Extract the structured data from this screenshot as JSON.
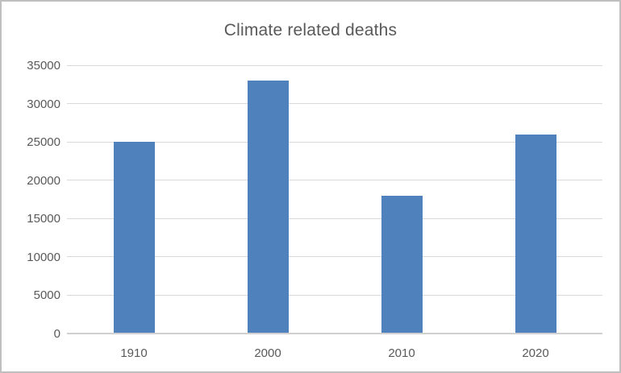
{
  "chart_data": {
    "type": "bar",
    "title": "Climate related deaths",
    "categories": [
      "1910",
      "2000",
      "2010",
      "2020"
    ],
    "values": [
      25000,
      33000,
      18000,
      26000
    ],
    "xlabel": "",
    "ylabel": "",
    "ylim": [
      0,
      35000
    ],
    "ytick_step": 5000,
    "ytick_labels": [
      "0",
      "5000",
      "10000",
      "15000",
      "20000",
      "25000",
      "30000",
      "35000"
    ],
    "grid": true,
    "legend": false,
    "colors": {
      "bar_fill": "#4f81bd",
      "gridline": "#d9d9d9",
      "axis_line": "#d0d0d0",
      "text": "#595959",
      "frame_border": "#bfbfbf",
      "background": "#ffffff"
    }
  }
}
